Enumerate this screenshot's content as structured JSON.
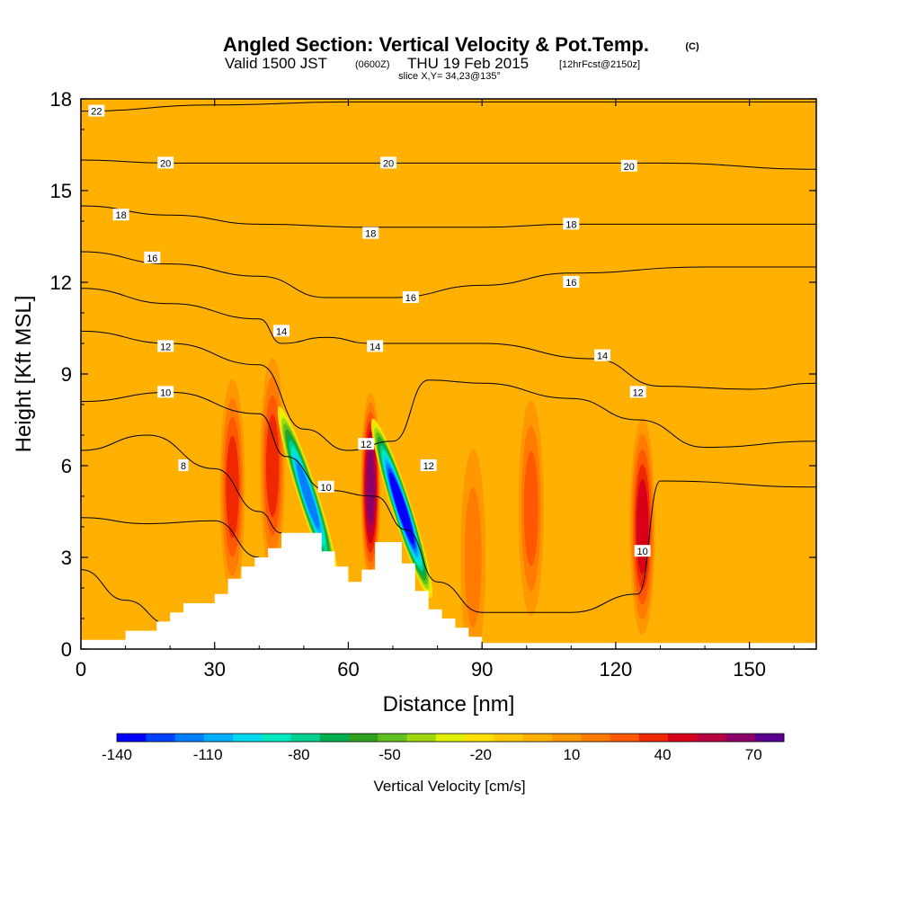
{
  "header": {
    "title": "Angled Section: Vertical Velocity & Pot.Temp.",
    "copyright": "(C)",
    "valid_prefix": "Valid 1500 JST",
    "valid_utc": "(0600Z)",
    "valid_date": "THU 19 Feb 2015",
    "forecast": "[12hrFcst@2150z]",
    "slice": "slice X,Y= 34,23@135°"
  },
  "chart_data": {
    "type": "heatmap",
    "title": "Angled Section: Vertical Velocity & Pot.Temp.",
    "xlabel": "Distance [nm]",
    "ylabel": "Height [Kft MSL]",
    "xlim": [
      0,
      165
    ],
    "ylim": [
      0,
      18
    ],
    "x_ticks": [
      "0",
      "30",
      "60",
      "90",
      "120",
      "150"
    ],
    "x_tick_values": [
      0,
      30,
      60,
      90,
      120,
      150
    ],
    "y_ticks": [
      "0",
      "3",
      "6",
      "9",
      "12",
      "15",
      "18"
    ],
    "y_tick_values": [
      0,
      3,
      6,
      9,
      12,
      15,
      18
    ],
    "grid": false,
    "background_value_cm_s": 0,
    "colorbar": {
      "label": "Vertical Velocity [cm/s]",
      "tick_labels": [
        "-140",
        "-110",
        "-80",
        "-50",
        "-20",
        "10",
        "40",
        "70"
      ],
      "tick_values": [
        -140,
        -110,
        -80,
        -50,
        -20,
        10,
        40,
        70
      ],
      "bins": [
        -140,
        -130,
        -120,
        -110,
        -100,
        -90,
        -80,
        -70,
        -60,
        -50,
        -40,
        -30,
        -20,
        -10,
        0,
        10,
        20,
        30,
        40,
        50,
        60,
        70,
        80
      ],
      "colors": [
        "#0000ff",
        "#0040ff",
        "#0080ff",
        "#00b0ff",
        "#00d8f0",
        "#00e8c0",
        "#00d090",
        "#00b050",
        "#30a020",
        "#60c020",
        "#a0d810",
        "#e0f000",
        "#ffe000",
        "#ffc800",
        "#ffb000",
        "#ff9800",
        "#ff7c00",
        "#ff5800",
        "#f02800",
        "#d80018",
        "#b80040",
        "#8c0068",
        "#5a0090"
      ]
    },
    "terrain_profile": {
      "x": [
        0,
        10,
        17,
        20,
        23,
        30,
        33,
        36,
        39,
        42,
        45,
        48,
        51,
        54,
        57,
        60,
        63,
        66,
        69,
        72,
        75,
        78,
        81,
        84,
        87,
        90,
        165
      ],
      "height": [
        0.3,
        0.6,
        0.9,
        1.2,
        1.5,
        1.8,
        2.3,
        2.7,
        3.0,
        3.3,
        3.8,
        3.8,
        3.8,
        3.2,
        2.7,
        2.2,
        2.6,
        3.5,
        3.5,
        2.8,
        1.9,
        1.3,
        1.0,
        0.7,
        0.4,
        0.2,
        0.0
      ]
    },
    "velocity_features": [
      {
        "name": "updraft-west-a",
        "x": 34,
        "height": 5.3,
        "value": 40
      },
      {
        "name": "updraft-west-b",
        "x": 43,
        "height": 6.0,
        "value": 40
      },
      {
        "name": "downdraft-lee-1",
        "x": 51,
        "height": 5.0,
        "value": -110
      },
      {
        "name": "updraft-central",
        "x": 65,
        "height": 5.3,
        "value": 70
      },
      {
        "name": "downdraft-lee-2",
        "x": 72,
        "height": 4.6,
        "value": -140
      },
      {
        "name": "updraft-east-a",
        "x": 101,
        "height": 4.6,
        "value": 30
      },
      {
        "name": "updraft-east-b",
        "x": 126,
        "height": 4.0,
        "value": 50
      },
      {
        "name": "weak-updraft-88",
        "x": 88,
        "height": 3.0,
        "value": 20
      }
    ],
    "series": [
      {
        "name": "22",
        "x": [
          0,
          30,
          60,
          90,
          120,
          165
        ],
        "values": [
          17.6,
          17.8,
          17.9,
          17.9,
          17.9,
          17.9
        ]
      },
      {
        "name": "20",
        "x": [
          0,
          20,
          45,
          70,
          100,
          130,
          165
        ],
        "values": [
          16.0,
          15.9,
          15.9,
          15.9,
          15.9,
          15.9,
          15.7
        ]
      },
      {
        "name": "18",
        "x": [
          0,
          20,
          40,
          65,
          90,
          110,
          140,
          165
        ],
        "values": [
          14.5,
          14.2,
          13.9,
          13.8,
          13.8,
          13.9,
          13.9,
          13.9
        ]
      },
      {
        "name": "16",
        "x": [
          0,
          20,
          40,
          55,
          70,
          90,
          110,
          140,
          165
        ],
        "values": [
          13.0,
          12.6,
          12.2,
          11.5,
          11.5,
          11.9,
          12.3,
          12.5,
          12.5
        ]
      },
      {
        "name": "14",
        "x": [
          0,
          20,
          40,
          45,
          55,
          65,
          90,
          115,
          130,
          150,
          165
        ],
        "values": [
          11.8,
          11.3,
          10.8,
          10.0,
          10.2,
          10.0,
          10.0,
          9.5,
          8.6,
          8.5,
          8.7
        ]
      },
      {
        "name": "12",
        "x": [
          0,
          20,
          40,
          50,
          60,
          70,
          78,
          90,
          110,
          125,
          140,
          165
        ],
        "values": [
          10.4,
          10.0,
          9.3,
          7.2,
          6.5,
          6.8,
          8.8,
          8.7,
          8.2,
          7.5,
          6.6,
          6.8
        ]
      },
      {
        "name": "10",
        "x": [
          0,
          20,
          40,
          46,
          55,
          66,
          73,
          80,
          90,
          110,
          125,
          130,
          165
        ],
        "values": [
          8.1,
          8.4,
          7.7,
          6.3,
          5.2,
          5.0,
          3.9,
          2.2,
          1.2,
          1.2,
          1.8,
          5.5,
          5.3
        ]
      },
      {
        "name": "8",
        "x": [
          0,
          15,
          30,
          40,
          45
        ],
        "values": [
          6.5,
          7.0,
          5.9,
          4.5,
          3.8
        ]
      },
      {
        "name": "",
        "x": [
          0,
          15,
          30,
          40
        ],
        "values": [
          4.3,
          4.1,
          4.2,
          3.0
        ]
      },
      {
        "name": "",
        "x": [
          0,
          10,
          20
        ],
        "values": [
          2.6,
          1.6,
          0.8
        ]
      }
    ],
    "contour_labels": [
      {
        "text": "22",
        "x": 3.5,
        "y": 17.6
      },
      {
        "text": "20",
        "x": 19,
        "y": 15.9
      },
      {
        "text": "20",
        "x": 69,
        "y": 15.9
      },
      {
        "text": "20",
        "x": 123,
        "y": 15.8
      },
      {
        "text": "18",
        "x": 9,
        "y": 14.2
      },
      {
        "text": "18",
        "x": 65,
        "y": 13.6
      },
      {
        "text": "18",
        "x": 110,
        "y": 13.9
      },
      {
        "text": "16",
        "x": 16,
        "y": 12.8
      },
      {
        "text": "16",
        "x": 74,
        "y": 11.5
      },
      {
        "text": "16",
        "x": 110,
        "y": 12.0
      },
      {
        "text": "14",
        "x": 45,
        "y": 10.4
      },
      {
        "text": "14",
        "x": 66,
        "y": 9.9
      },
      {
        "text": "14",
        "x": 117,
        "y": 9.6
      },
      {
        "text": "12",
        "x": 19,
        "y": 9.9
      },
      {
        "text": "12",
        "x": 125,
        "y": 8.4
      },
      {
        "text": "12",
        "x": 64,
        "y": 6.7
      },
      {
        "text": "12",
        "x": 78,
        "y": 6.0
      },
      {
        "text": "10",
        "x": 19,
        "y": 8.4
      },
      {
        "text": "10",
        "x": 55,
        "y": 5.3
      },
      {
        "text": "10",
        "x": 126,
        "y": 3.2
      },
      {
        "text": "8",
        "x": 23,
        "y": 6.0
      }
    ]
  }
}
